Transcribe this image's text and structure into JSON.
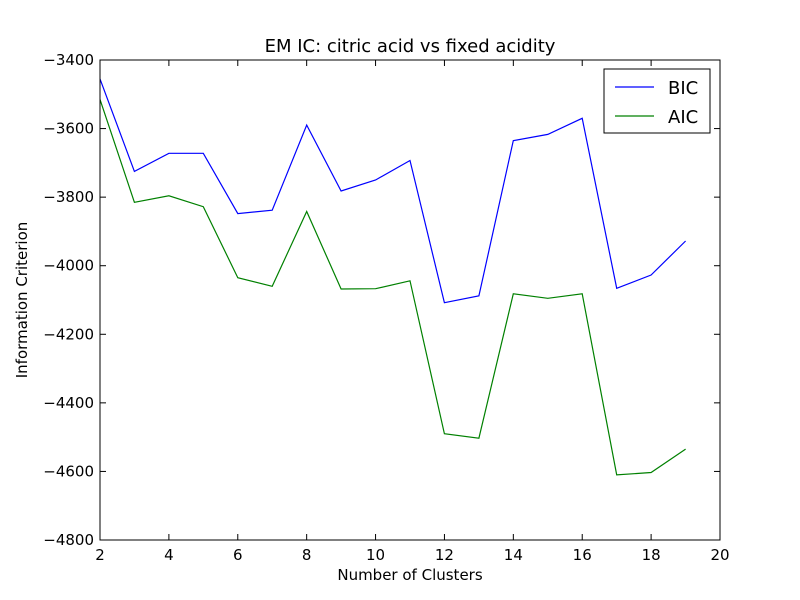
{
  "chart_data": {
    "type": "line",
    "title": "EM IC: citric acid vs fixed acidity",
    "xlabel": "Number of Clusters",
    "ylabel": "Information Criterion",
    "xlim": [
      2,
      20
    ],
    "ylim": [
      -4800,
      -3400
    ],
    "xticks": [
      2,
      4,
      6,
      8,
      10,
      12,
      14,
      16,
      18,
      20
    ],
    "yticks": [
      -4800,
      -4600,
      -4400,
      -4200,
      -4000,
      -3800,
      -3600,
      -3400
    ],
    "grid": false,
    "legend_position": "top-right",
    "x": [
      2,
      3,
      4,
      5,
      6,
      7,
      8,
      9,
      10,
      11,
      12,
      13,
      14,
      15,
      16,
      17,
      18,
      19
    ],
    "series": [
      {
        "name": "BIC",
        "color": "#0000ff",
        "values": [
          -3455,
          -3725,
          -3672,
          -3672,
          -3848,
          -3838,
          -3590,
          -3782,
          -3750,
          -3693,
          -4108,
          -4088,
          -3635,
          -3617,
          -3570,
          -4066,
          -4027,
          -3928
        ]
      },
      {
        "name": "AIC",
        "color": "#008000",
        "values": [
          -3515,
          -3815,
          -3796,
          -3828,
          -4035,
          -4060,
          -3842,
          -4068,
          -4067,
          -4044,
          -4490,
          -4503,
          -4082,
          -4095,
          -4082,
          -4610,
          -4603,
          -4535
        ]
      }
    ]
  }
}
